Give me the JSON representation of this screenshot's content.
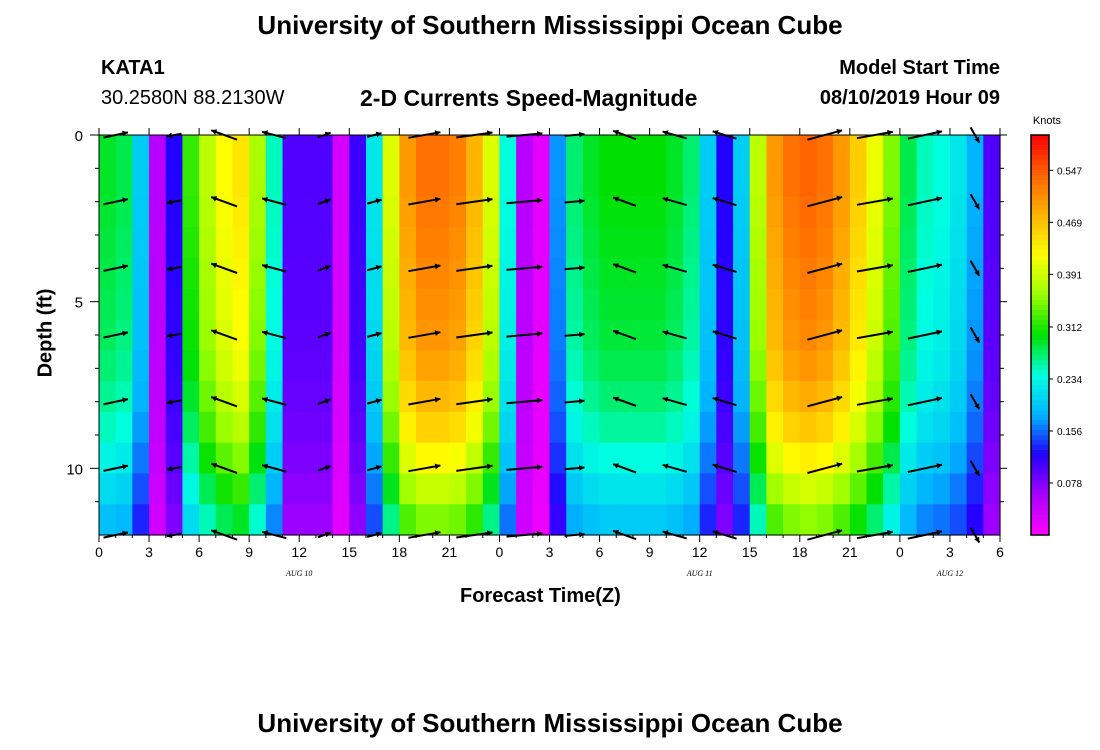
{
  "header": {
    "title": "University of Southern Mississippi Ocean Cube",
    "station": "KATA1",
    "coordinates": "30.2580N 88.2130W",
    "subtitle": "2-D Currents Speed-Magnitude",
    "model_start_label": "Model Start Time",
    "model_start_value": "08/10/2019 Hour 09"
  },
  "footer": {
    "title": "University of Southern Mississippi Ocean Cube"
  },
  "chart_data": {
    "type": "heatmap",
    "title": "2-D Currents Speed-Magnitude",
    "xlabel": "Forecast Time(Z)",
    "ylabel": "Depth (ft)",
    "x_tick_labels": [
      "0",
      "3",
      "6",
      "9",
      "12",
      "15",
      "18",
      "21",
      "0",
      "3",
      "6",
      "9",
      "12",
      "15",
      "18",
      "21",
      "0",
      "3",
      "6"
    ],
    "x_range_hours": [
      0,
      54
    ],
    "date_labels": [
      {
        "label": "AUG 10",
        "hour": 12
      },
      {
        "label": "AUG 11",
        "hour": 36
      },
      {
        "label": "AUG 12",
        "hour": 51
      }
    ],
    "y_tick_labels": [
      "0",
      "5",
      "10"
    ],
    "y_ticks": [
      0,
      5,
      10
    ],
    "y_range_ft": [
      0,
      12
    ],
    "colorbar": {
      "label": "Knots",
      "ticks": [
        "0.547",
        "0.469",
        "0.391",
        "0.312",
        "0.234",
        "0.156",
        "0.078"
      ],
      "tick_values": [
        0.547,
        0.469,
        0.391,
        0.312,
        0.234,
        0.156,
        0.078
      ],
      "range": [
        0,
        0.6
      ],
      "colors": [
        "#ff00ff",
        "#aa00ff",
        "#2200ff",
        "#00b4ff",
        "#00ffe0",
        "#00e000",
        "#9aff00",
        "#ffff00",
        "#ffb400",
        "#ff6400",
        "#ff0000"
      ]
    },
    "surface_speed_knots": [
      0.29,
      0.28,
      0.2,
      0.05,
      0.12,
      0.32,
      0.38,
      0.42,
      0.44,
      0.37,
      0.25,
      0.1,
      0.1,
      0.1,
      0.03,
      0.11,
      0.22,
      0.4,
      0.5,
      0.53,
      0.53,
      0.52,
      0.48,
      0.4,
      0.24,
      0.05,
      0.02,
      0.17,
      0.27,
      0.29,
      0.3,
      0.3,
      0.3,
      0.3,
      0.29,
      0.27,
      0.2,
      0.12,
      0.2,
      0.38,
      0.5,
      0.53,
      0.54,
      0.53,
      0.5,
      0.46,
      0.41,
      0.35,
      0.28,
      0.25,
      0.24,
      0.22,
      0.18,
      0.1
    ],
    "depth_speed_factors": [
      1.0,
      1.0,
      0.99,
      0.98,
      0.97,
      0.96,
      0.95,
      0.93,
      0.9,
      0.86,
      0.8,
      0.73,
      0.66
    ],
    "vector_rows_ft": [
      0,
      2,
      4,
      6,
      8,
      10,
      12
    ],
    "vector_columns_hours": [
      1,
      4.5,
      7.5,
      10.5,
      13.5,
      16.5,
      19.5,
      22.5,
      25.5,
      28.5,
      31.5,
      34.5,
      37.5,
      43.5,
      46.5,
      49.5,
      52.5
    ],
    "vector_angles_deg": [
      -12,
      170,
      200,
      195,
      -20,
      -15,
      -10,
      -8,
      -5,
      -5,
      200,
      196,
      197,
      -15,
      -10,
      -12,
      60
    ],
    "vector_lengths_knots": [
      0.3,
      0.1,
      0.35,
      0.3,
      0.07,
      0.1,
      0.45,
      0.53,
      0.52,
      0.2,
      0.29,
      0.3,
      0.3,
      0.52,
      0.53,
      0.5,
      0.15
    ]
  }
}
